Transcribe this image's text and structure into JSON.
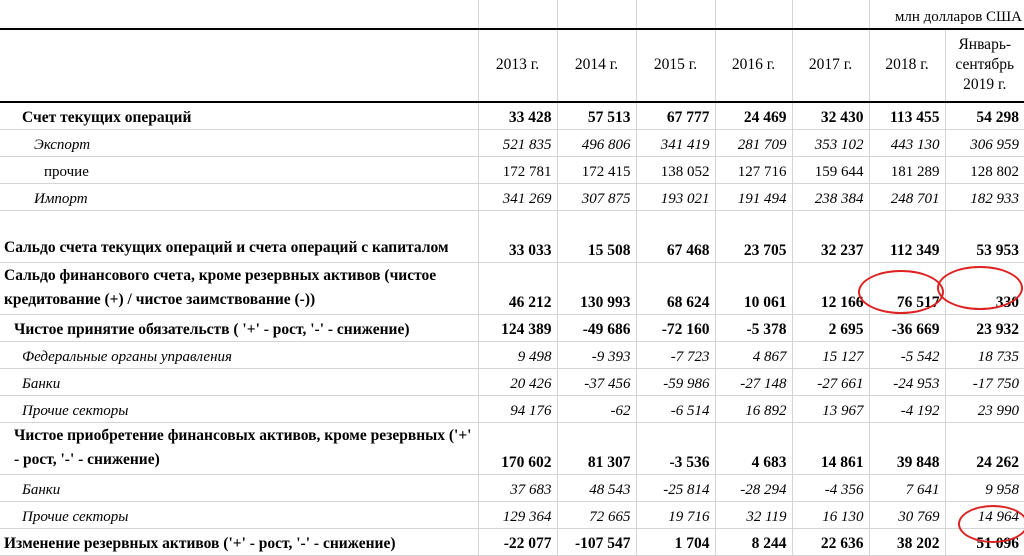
{
  "unit_label": "млн долларов США",
  "columns": [
    "2013 г.",
    "2014 г.",
    "2015 г.",
    "2016 г.",
    "2017 г.",
    "2018 г.",
    "Январь-сентябрь 2019 г."
  ],
  "rows": [
    {
      "label": "Счет текущих операций",
      "values": [
        "33 428",
        "57 513",
        "67 777",
        "24 469",
        "32 430",
        "113 455",
        "54 298"
      ]
    },
    {
      "label": "Экспорт",
      "values": [
        "521 835",
        "496 806",
        "341 419",
        "281 709",
        "353 102",
        "443 130",
        "306 959"
      ]
    },
    {
      "label": "прочие",
      "values": [
        "172 781",
        "172 415",
        "138 052",
        "127 716",
        "159 644",
        "181 289",
        "128 802"
      ]
    },
    {
      "label": "Импорт",
      "values": [
        "341 269",
        "307 875",
        "193 021",
        "191 494",
        "238 384",
        "248 701",
        "182 933"
      ]
    },
    {
      "label": "Сальдо счета текущих операций и счета операций с капиталом",
      "values": [
        "33 033",
        "15 508",
        "67 468",
        "23 705",
        "32 237",
        "112 349",
        "53 953"
      ]
    },
    {
      "label": "Сальдо финансового счета, кроме резервных активов (чистое кредитование (+) / чистое заимствование (-))",
      "values": [
        "46 212",
        "130 993",
        "68 624",
        "10 061",
        "12 166",
        "76 517",
        "330"
      ]
    },
    {
      "label": "Чистое принятие обязательств ( '+' - рост, '-' - снижение)",
      "values": [
        "124 389",
        "-49 686",
        "-72 160",
        "-5 378",
        "2 695",
        "-36 669",
        "23 932"
      ]
    },
    {
      "label": "Федеральные органы управления",
      "values": [
        "9 498",
        "-9 393",
        "-7 723",
        "4 867",
        "15 127",
        "-5 542",
        "18 735"
      ]
    },
    {
      "label": "Банки",
      "values": [
        "20 426",
        "-37 456",
        "-59 986",
        "-27 148",
        "-27 661",
        "-24 953",
        "-17 750"
      ]
    },
    {
      "label": "Прочие секторы",
      "values": [
        "94 176",
        "-62",
        "-6 514",
        "16 892",
        "13 967",
        "-4 192",
        "23 990"
      ]
    },
    {
      "label": "Чистое приобретение финансовых активов, кроме резервных  ('+' - рост, '-' - снижение)",
      "values": [
        "170 602",
        "81 307",
        "-3 536",
        "4 683",
        "14 861",
        "39 848",
        "24 262"
      ]
    },
    {
      "label": "Банки",
      "values": [
        "37 683",
        "48 543",
        "-25 814",
        "-28 294",
        "-4 356",
        "7 641",
        "9 958"
      ]
    },
    {
      "label": "Прочие секторы",
      "values": [
        "129 364",
        "72 665",
        "19 716",
        "32 119",
        "16 130",
        "30 769",
        "14 964"
      ]
    },
    {
      "label": "Изменение резервных активов ('+' - рост, '-' - снижение)",
      "values": [
        "-22 077",
        "-107 547",
        "1 704",
        "8 244",
        "22 636",
        "38 202",
        "51 096"
      ]
    }
  ],
  "annotation_color": "#dd2222"
}
